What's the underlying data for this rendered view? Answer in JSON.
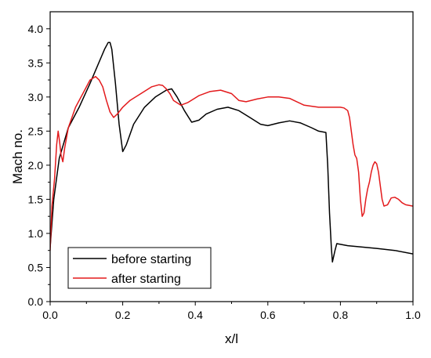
{
  "chart_data": {
    "type": "line",
    "title": "",
    "xlabel": "x/l",
    "ylabel": "Mach no.",
    "xlim": [
      0.0,
      1.0
    ],
    "ylim": [
      0.0,
      4.25
    ],
    "xticks": [
      0.0,
      0.2,
      0.4,
      0.6,
      0.8,
      1.0
    ],
    "xtick_labels": [
      "0.0",
      "0.2",
      "0.4",
      "0.6",
      "0.8",
      "1.0"
    ],
    "yticks": [
      0.0,
      0.5,
      1.0,
      1.5,
      2.0,
      2.5,
      3.0,
      3.5,
      4.0
    ],
    "ytick_labels": [
      "0.0",
      "0.5",
      "1.0",
      "1.5",
      "2.0",
      "2.5",
      "3.0",
      "3.5",
      "4.0"
    ],
    "grid": false,
    "legend_position": "bottom-left",
    "series": [
      {
        "name": "before starting",
        "color": "#000000",
        "x": [
          0.0,
          0.01,
          0.025,
          0.05,
          0.08,
          0.11,
          0.13,
          0.15,
          0.16,
          0.165,
          0.17,
          0.18,
          0.19,
          0.2,
          0.21,
          0.23,
          0.26,
          0.29,
          0.32,
          0.335,
          0.35,
          0.37,
          0.39,
          0.41,
          0.43,
          0.46,
          0.49,
          0.52,
          0.55,
          0.58,
          0.6,
          0.63,
          0.66,
          0.69,
          0.72,
          0.74,
          0.76,
          0.765,
          0.77,
          0.775,
          0.778,
          0.785,
          0.79,
          0.8,
          0.82,
          0.86,
          0.9,
          0.95,
          1.0
        ],
        "y": [
          0.8,
          1.5,
          2.1,
          2.55,
          2.85,
          3.2,
          3.45,
          3.7,
          3.8,
          3.8,
          3.7,
          3.2,
          2.6,
          2.2,
          2.3,
          2.6,
          2.85,
          3.0,
          3.1,
          3.12,
          3.0,
          2.8,
          2.63,
          2.66,
          2.75,
          2.82,
          2.85,
          2.8,
          2.7,
          2.6,
          2.58,
          2.62,
          2.65,
          2.62,
          2.55,
          2.5,
          2.48,
          2.0,
          1.3,
          0.8,
          0.58,
          0.75,
          0.85,
          0.84,
          0.82,
          0.8,
          0.78,
          0.75,
          0.7
        ]
      },
      {
        "name": "after starting",
        "color": "#e31a1c",
        "x": [
          0.0,
          0.005,
          0.012,
          0.018,
          0.022,
          0.026,
          0.03,
          0.035,
          0.04,
          0.05,
          0.07,
          0.09,
          0.11,
          0.125,
          0.135,
          0.145,
          0.155,
          0.165,
          0.175,
          0.185,
          0.2,
          0.22,
          0.25,
          0.28,
          0.3,
          0.31,
          0.32,
          0.33,
          0.34,
          0.36,
          0.38,
          0.41,
          0.44,
          0.47,
          0.5,
          0.52,
          0.54,
          0.57,
          0.6,
          0.63,
          0.66,
          0.7,
          0.74,
          0.78,
          0.8,
          0.81,
          0.82,
          0.825,
          0.83,
          0.835,
          0.84,
          0.845,
          0.85,
          0.855,
          0.86,
          0.865,
          0.87,
          0.875,
          0.88,
          0.885,
          0.89,
          0.895,
          0.9,
          0.905,
          0.91,
          0.915,
          0.92,
          0.93,
          0.94,
          0.95,
          0.96,
          0.97,
          0.98,
          1.0
        ],
        "y": [
          0.75,
          1.4,
          1.8,
          2.3,
          2.5,
          2.35,
          2.15,
          2.05,
          2.25,
          2.55,
          2.85,
          3.05,
          3.25,
          3.3,
          3.25,
          3.15,
          2.95,
          2.78,
          2.7,
          2.75,
          2.85,
          2.95,
          3.05,
          3.15,
          3.18,
          3.17,
          3.12,
          3.05,
          2.95,
          2.88,
          2.92,
          3.02,
          3.08,
          3.1,
          3.05,
          2.95,
          2.93,
          2.97,
          3.0,
          3.0,
          2.98,
          2.88,
          2.85,
          2.85,
          2.85,
          2.84,
          2.8,
          2.7,
          2.5,
          2.3,
          2.15,
          2.1,
          1.9,
          1.5,
          1.25,
          1.3,
          1.5,
          1.65,
          1.75,
          1.9,
          2.0,
          2.05,
          2.02,
          1.9,
          1.7,
          1.5,
          1.4,
          1.42,
          1.52,
          1.53,
          1.5,
          1.45,
          1.42,
          1.4
        ]
      }
    ]
  }
}
